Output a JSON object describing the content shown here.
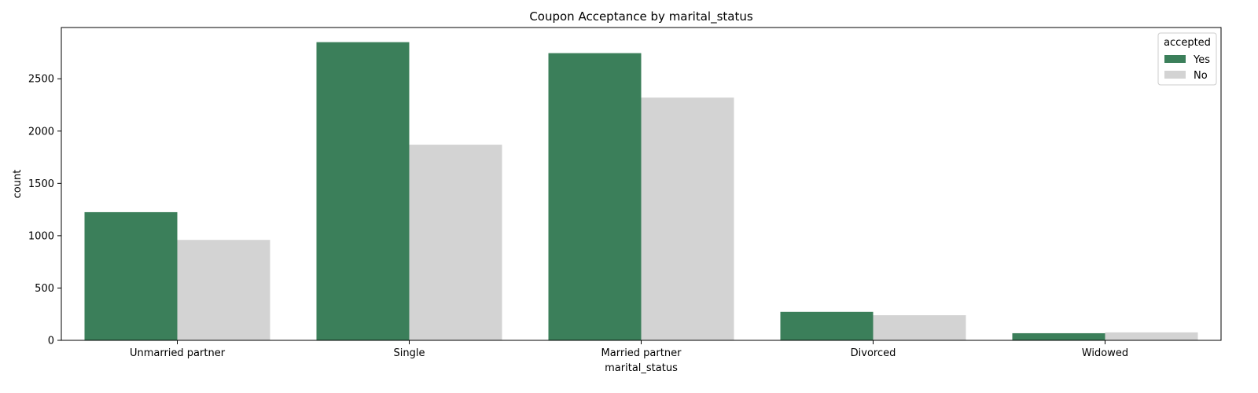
{
  "chart_data": {
    "type": "bar",
    "title": "Coupon Acceptance by marital_status",
    "xlabel": "marital_status",
    "ylabel": "count",
    "categories": [
      "Unmarried partner",
      "Single",
      "Married partner",
      "Divorced",
      "Widowed"
    ],
    "series": [
      {
        "name": "Yes",
        "color": "#3b7f5a",
        "values": [
          1225,
          2850,
          2745,
          272,
          68
        ]
      },
      {
        "name": "No",
        "color": "#d3d3d3",
        "values": [
          960,
          1870,
          2320,
          240,
          76
        ]
      }
    ],
    "ylim": [
      0,
      2990
    ],
    "yticks": [
      0,
      500,
      1000,
      1500,
      2000,
      2500
    ],
    "grid": false,
    "legend": {
      "title": "accepted",
      "placement": "top-right"
    }
  }
}
